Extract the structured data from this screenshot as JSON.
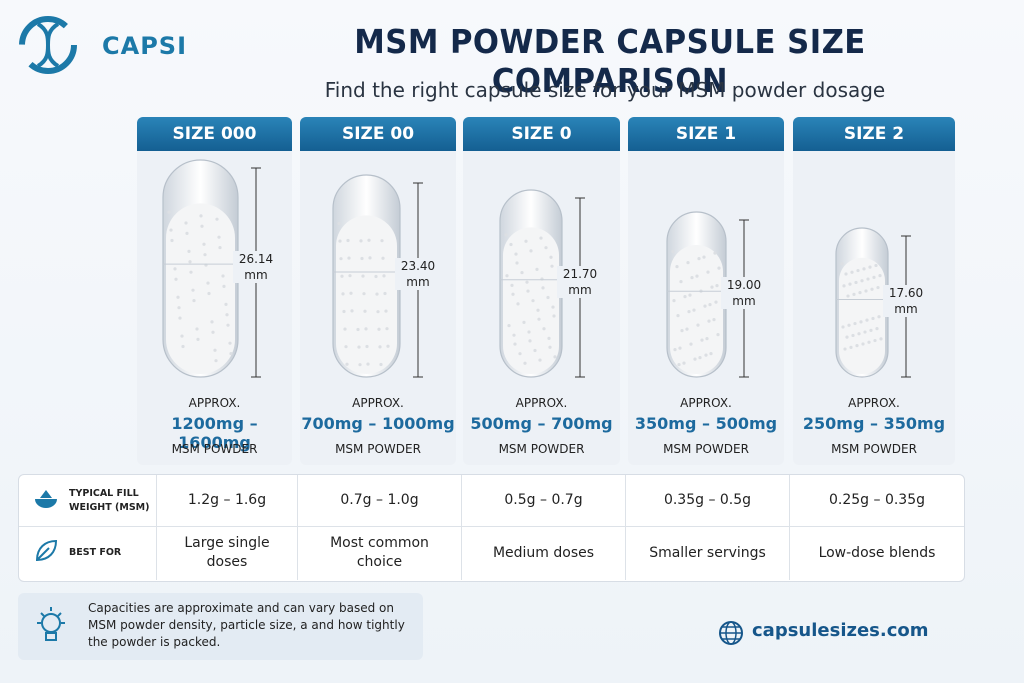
{
  "header": {
    "brand": "CAPSI",
    "title": "MSM POWDER CAPSULE SIZE COMPARISON",
    "subtitle": "Find the right capsule size for your MSM powder dosage"
  },
  "cards": [
    {
      "size": "SIZE 000",
      "length": "26.14 mm",
      "approx": "APPROX.",
      "range": "1200mg – 1600mg",
      "unit_label": "MSM POWDER"
    },
    {
      "size": "SIZE 00",
      "length": "23.40 mm",
      "approx": "APPROX.",
      "range": "700mg – 1000mg",
      "unit_label": "MSM POWDER"
    },
    {
      "size": "SIZE 0",
      "length": "21.70 mm",
      "approx": "APPROX.",
      "range": "500mg – 700mg",
      "unit_label": "MSM POWDER"
    },
    {
      "size": "SIZE 1",
      "length": "19.00 mm",
      "approx": "APPROX.",
      "range": "350mg – 500mg",
      "unit_label": "MSM POWDER"
    },
    {
      "size": "SIZE 2",
      "length": "17.60 mm",
      "approx": "APPROX.",
      "range": "250mg – 350mg",
      "unit_label": "MSM POWDER"
    }
  ],
  "table": {
    "rows": [
      {
        "label": "TYPICAL FILL WEIGHT (MSM)",
        "cells": [
          "1.2g – 1.6g",
          "0.7g – 1.0g",
          "0.5g – 0.7g",
          "0.35g – 0.5g",
          "0.25g – 0.35g"
        ]
      },
      {
        "label": "BEST FOR",
        "cells": [
          "Large single doses",
          "Most common choice",
          "Medium doses",
          "Smaller servings",
          "Low-dose blends"
        ]
      }
    ]
  },
  "note": {
    "text": "Capacities are approximate and can vary based on MSM powder density, particle size, a and how tightly the powder is packed."
  },
  "footer": {
    "url": "capsulesizes.com"
  }
}
